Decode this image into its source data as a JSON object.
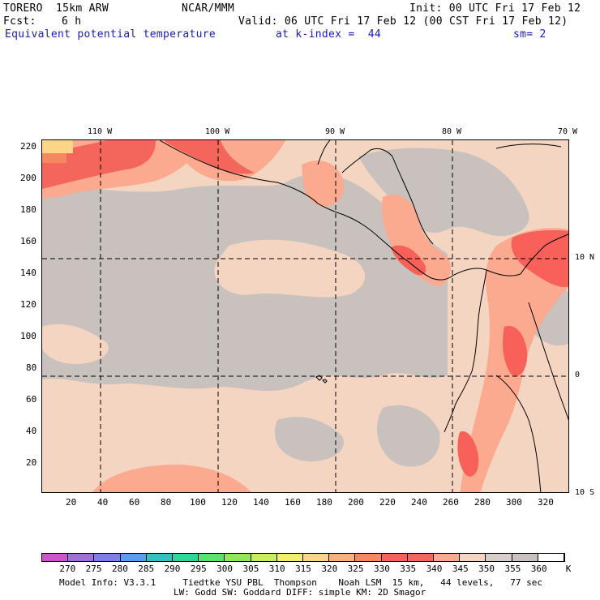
{
  "header": {
    "model": "TORERO  15km ARW",
    "org": "NCAR/MMM",
    "init": "Init: 00 UTC Fri 17 Feb 12",
    "fcst_label": "Fcst:",
    "fcst_value": "6 h",
    "valid": "Valid: 06 UTC Fri 17 Feb 12 (00 CST Fri 17 Feb 12)",
    "field": "Equivalent potential temperature",
    "level": "at k-index =  44",
    "smoothing": "sm= 2"
  },
  "map": {
    "top_lon_labels": [
      "110 W",
      "100 W",
      "90 W",
      "80 W",
      "70 W"
    ],
    "right_lat_labels": [
      "10 N",
      "0",
      "10 S"
    ],
    "y_ticks": [
      "220",
      "200",
      "180",
      "160",
      "140",
      "120",
      "100",
      "80",
      "60",
      "40",
      "20"
    ],
    "x_ticks": [
      "20",
      "40",
      "60",
      "80",
      "100",
      "120",
      "140",
      "160",
      "180",
      "200",
      "220",
      "240",
      "260",
      "280",
      "300",
      "320"
    ],
    "colors": {
      "base": "#f4d5c1",
      "gray": "#c9c1bd",
      "salmon": "#fba98f",
      "red": "#f7615a",
      "orange": "#f4895f",
      "yellow": "#fdd589",
      "coast": "#000000"
    }
  },
  "colorbar": {
    "labels": [
      "270",
      "275",
      "280",
      "285",
      "290",
      "295",
      "300",
      "305",
      "310",
      "315",
      "320",
      "325",
      "330",
      "335",
      "340",
      "345",
      "350",
      "355",
      "360"
    ],
    "unit": "K",
    "colors": [
      "#cc55cc",
      "#a070d8",
      "#7e7ee8",
      "#5a9ef0",
      "#33c2c2",
      "#2ed69a",
      "#59e36d",
      "#8fe85a",
      "#c8ee5c",
      "#f2ee6a",
      "#fdd589",
      "#f9b07a",
      "#f4895f",
      "#f7615a",
      "#f4665c",
      "#fba98f",
      "#f4d5c1",
      "#d8cfcb",
      "#c9c1bd",
      "#ffffff"
    ]
  },
  "footer": {
    "line1": "Model Info: V3.3.1     Tiedtke YSU PBL  Thompson    Noah LSM  15 km,   44 levels,   77 sec",
    "line2": "LW: Godd SW: Goddard DIFF: simple KM: 2D Smagor"
  }
}
